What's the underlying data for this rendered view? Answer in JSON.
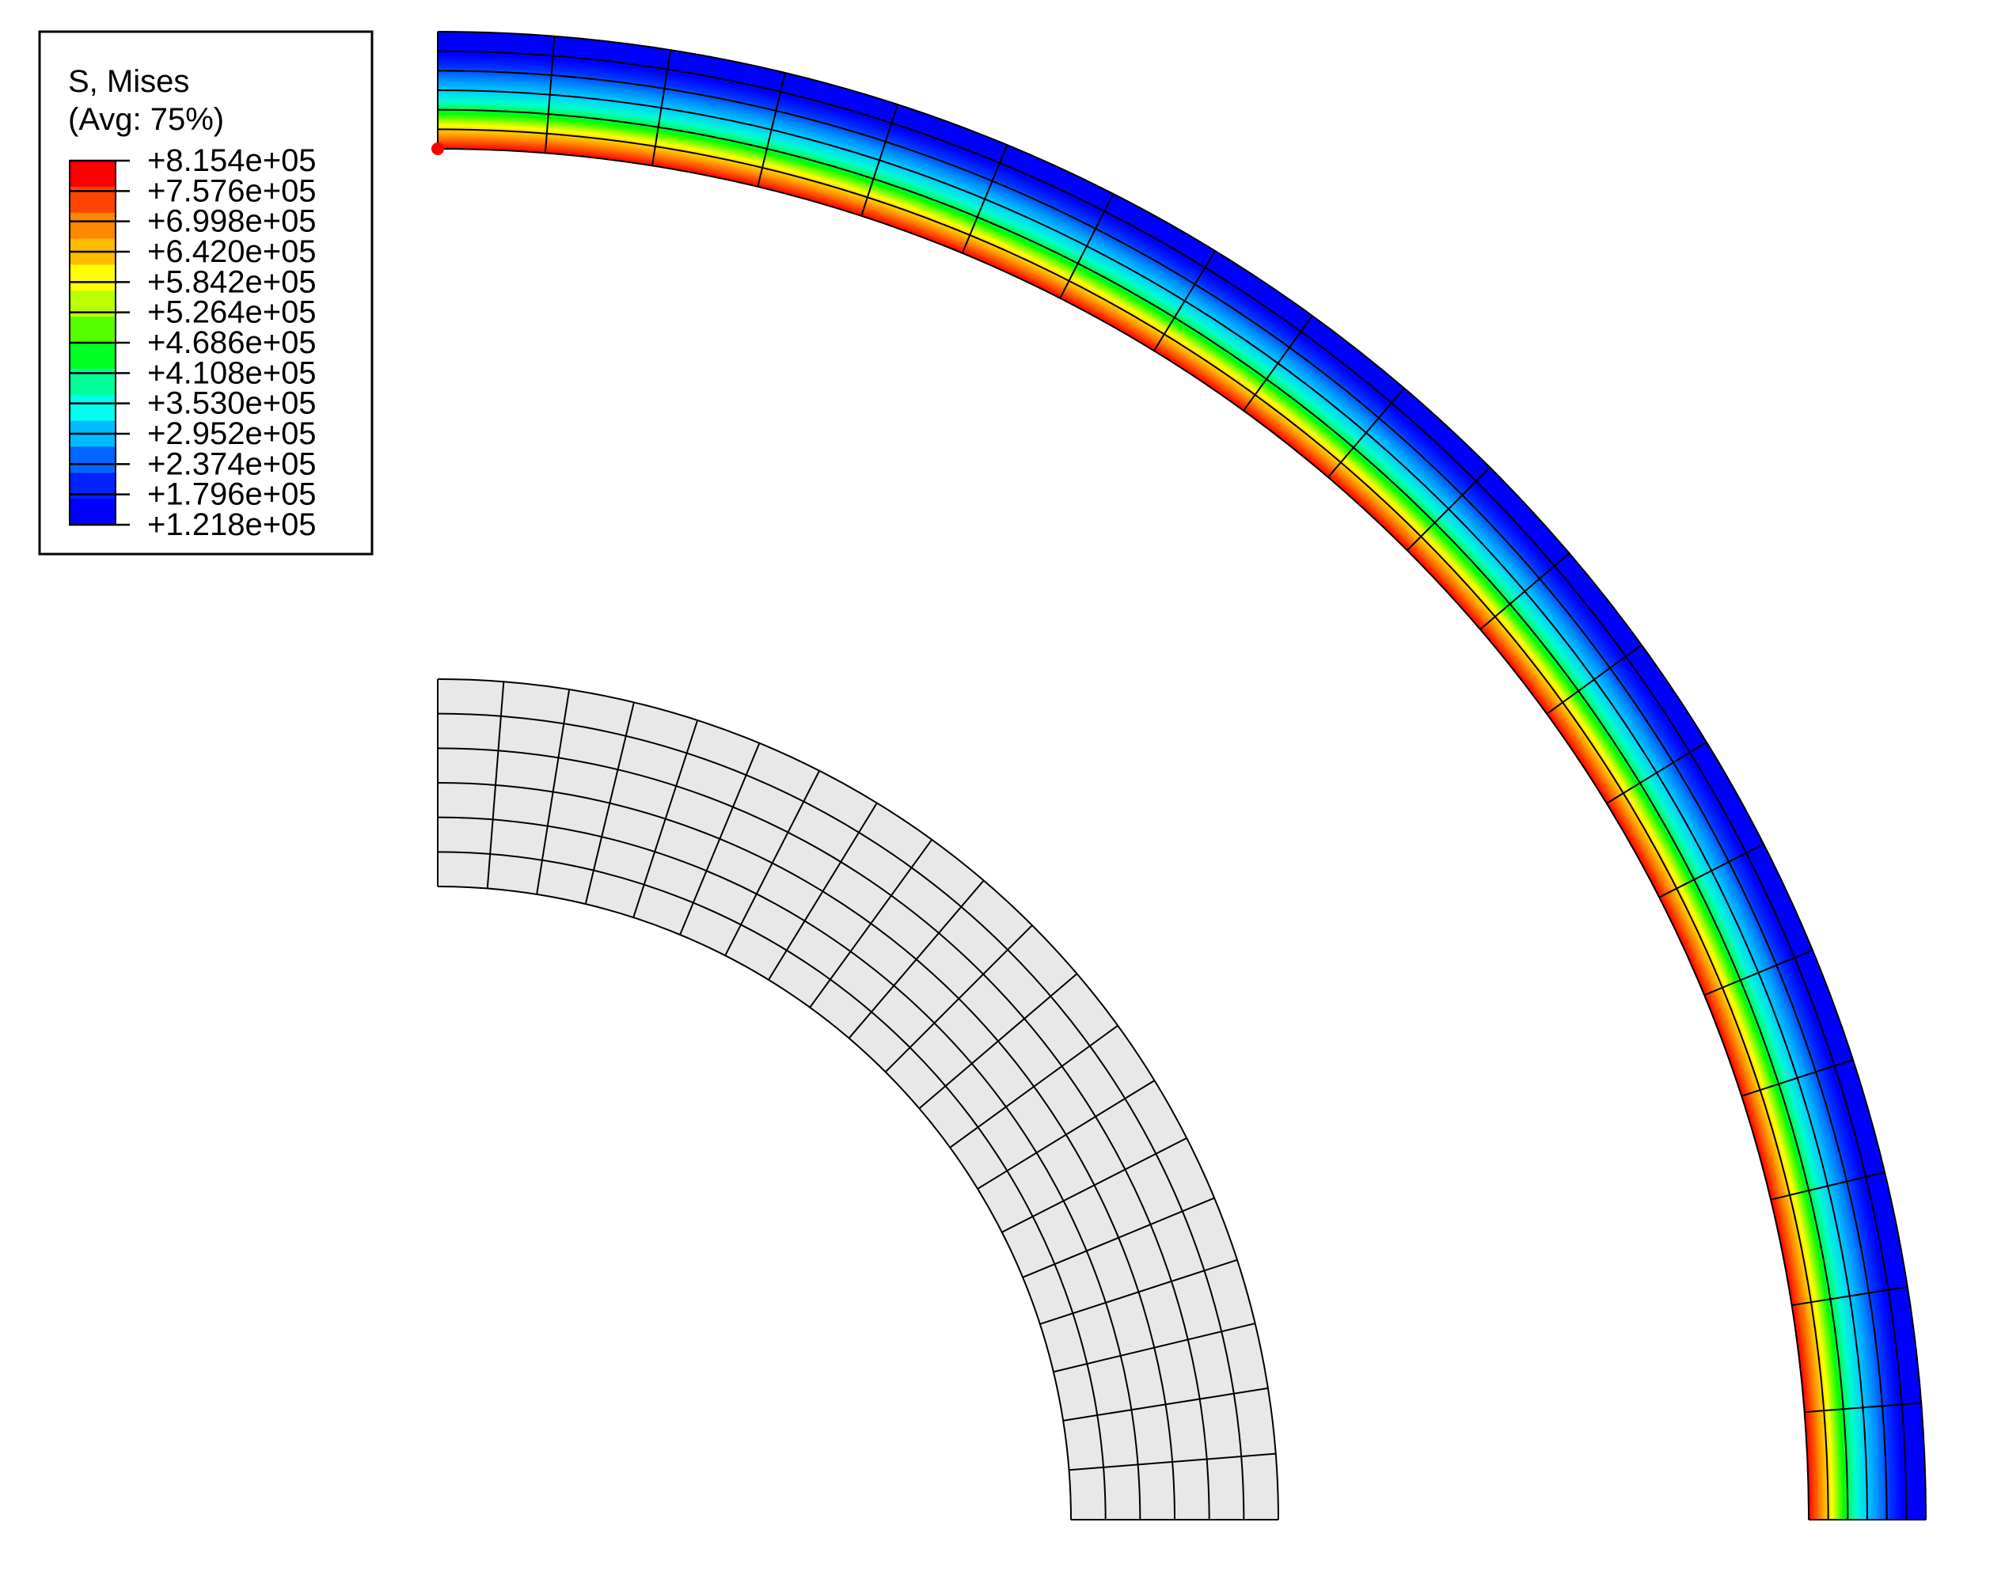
{
  "legend": {
    "title": "S, Mises",
    "subtitle": "(Avg: 75%)",
    "values": [
      "+8.154e+05",
      "+7.576e+05",
      "+6.998e+05",
      "+6.420e+05",
      "+5.842e+05",
      "+5.264e+05",
      "+4.686e+05",
      "+4.108e+05",
      "+3.530e+05",
      "+2.952e+05",
      "+2.374e+05",
      "+1.796e+05",
      "+1.218e+05"
    ],
    "colors": [
      "#ff0000",
      "#ff4400",
      "#ff8800",
      "#ffbb00",
      "#ffff00",
      "#bbff00",
      "#55ff00",
      "#00ff22",
      "#00ff99",
      "#00ffee",
      "#00bbff",
      "#0066ff",
      "#0022ff",
      "#0000ff"
    ]
  },
  "deformed_mesh": {
    "stress_profile_colors": [
      "#ff0000",
      "#ff8800",
      "#ffff00",
      "#00ff00",
      "#00ffcc",
      "#00ccff",
      "#0088ff",
      "#0033ff",
      "#0000ff",
      "#0000ff",
      "#0000ff"
    ],
    "radial_layers": 6,
    "circumferential_elements": 20
  },
  "undeformed_mesh": {
    "fill_color": "#e8e8e8",
    "radial_layers": 6,
    "circumferential_elements": 20
  },
  "marker": {
    "color": "#ff0000"
  }
}
